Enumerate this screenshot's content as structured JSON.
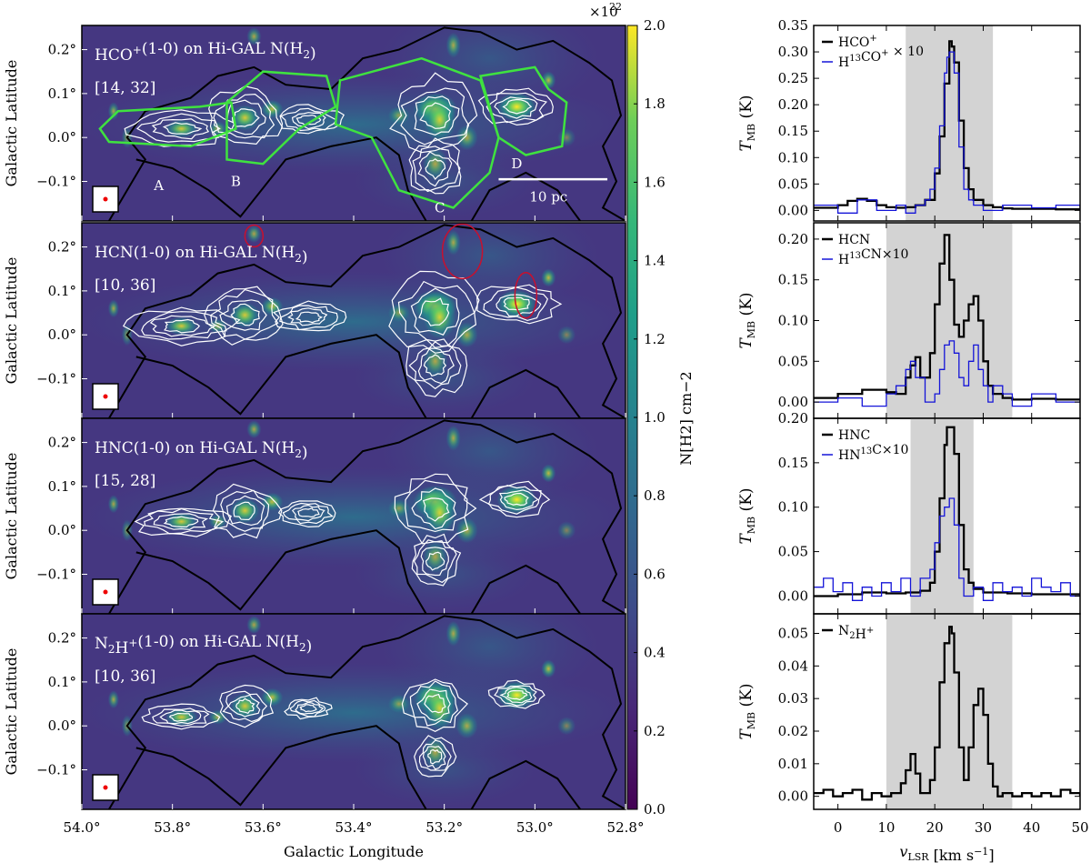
{
  "left": {
    "panels": [
      {
        "title_main": "HCO",
        "title_sup": "+",
        "title_rest": "(1-0) on Hi-GAL N(H",
        "title_sub": "2",
        "title_end": ")",
        "range": "[14, 32]",
        "show_regions": true
      },
      {
        "title_main": "HCN(1-0) on Hi-GAL N(H",
        "title_sup": "",
        "title_rest": "",
        "title_sub": "2",
        "title_end": ")",
        "range": "[10, 36]",
        "show_red": true
      },
      {
        "title_main": "HNC(1-0) on Hi-GAL N(H",
        "title_sup": "",
        "title_rest": "",
        "title_sub": "2",
        "title_end": ")",
        "range": "[15, 28]"
      },
      {
        "title_main": "N",
        "title_sup": "",
        "title_rest": "H",
        "title_sub": "2",
        "title_end": "+(1-0) on Hi-GAL N(H2)",
        "range": "[10, 36]"
      }
    ],
    "ylabel": "Galactic Latitude",
    "xlabel": "Galactic Longitude",
    "yticks": [
      "0.2°",
      "0.1°",
      "0.0°",
      "−0.1°"
    ],
    "xticks": [
      "54.0°",
      "53.8°",
      "53.6°",
      "53.4°",
      "53.2°",
      "53.0°",
      "52.8°"
    ],
    "region_labels": [
      "A",
      "B",
      "C",
      "D"
    ],
    "scalebar_label": "10 pc",
    "colorbar": {
      "label": "N[H2] cm−2",
      "exponent": "×10",
      "exponent_power": "22",
      "ticks": [
        "2.0",
        "1.8",
        "1.6",
        "1.4",
        "1.2",
        "1.0",
        "0.8",
        "0.6",
        "0.4",
        "0.2",
        "0.0"
      ],
      "range": [
        0.0,
        2.0
      ]
    }
  },
  "chart_data": [
    {
      "type": "line",
      "ylabel": "T_MB (K)",
      "xlim": [
        -5,
        50
      ],
      "ylim": [
        -0.02,
        0.35
      ],
      "yticks": [
        0.0,
        0.05,
        0.1,
        0.15,
        0.2,
        0.25,
        0.3,
        0.35
      ],
      "shade": [
        14,
        32
      ],
      "series": [
        {
          "name": "HCO+",
          "color": "#000000",
          "x": [
            -5,
            0,
            2,
            4,
            6,
            8,
            10,
            12,
            14,
            16,
            18,
            20,
            21,
            22,
            23,
            23.5,
            24,
            25,
            26,
            27,
            28,
            30,
            32,
            34,
            36,
            40,
            45,
            50
          ],
          "y": [
            0.005,
            0.01,
            0.018,
            0.022,
            0.018,
            0.01,
            0.006,
            0.005,
            0.006,
            0.01,
            0.02,
            0.07,
            0.14,
            0.24,
            0.32,
            0.31,
            0.28,
            0.17,
            0.08,
            0.04,
            0.02,
            0.01,
            0.006,
            0.004,
            0.003,
            0.003,
            0.002,
            0.002
          ]
        },
        {
          "name": "H13CO+ × 10",
          "color": "#1414d8",
          "x": [
            -5,
            0,
            4,
            8,
            12,
            14,
            16,
            18,
            19,
            20,
            21,
            22,
            22.5,
            23,
            24,
            25,
            26,
            27,
            28,
            30,
            34,
            40,
            45,
            50
          ],
          "y": [
            0.01,
            -0.005,
            0.02,
            0.0,
            0.01,
            -0.005,
            0.01,
            0.02,
            0.04,
            0.08,
            0.16,
            0.26,
            0.29,
            0.3,
            0.26,
            0.12,
            0.04,
            0.02,
            0.01,
            0.0,
            0.01,
            0.005,
            0.01,
            0.0
          ]
        }
      ]
    },
    {
      "type": "line",
      "ylabel": "T_MB (K)",
      "xlim": [
        -5,
        50
      ],
      "ylim": [
        -0.02,
        0.22
      ],
      "yticks": [
        0.0,
        0.05,
        0.1,
        0.15,
        0.2
      ],
      "shade": [
        10,
        36
      ],
      "series": [
        {
          "name": "HCN",
          "color": "#000000",
          "x": [
            -5,
            0,
            5,
            10,
            12,
            14,
            15,
            16,
            17,
            18,
            19,
            20,
            21,
            22,
            23,
            24,
            25,
            26,
            27,
            28,
            29,
            30,
            31,
            32,
            34,
            36,
            40,
            45,
            50
          ],
          "y": [
            0.005,
            0.01,
            0.015,
            0.012,
            0.01,
            0.03,
            0.045,
            0.055,
            0.03,
            0.03,
            0.06,
            0.12,
            0.17,
            0.205,
            0.15,
            0.095,
            0.08,
            0.1,
            0.12,
            0.13,
            0.1,
            0.05,
            0.02,
            0.01,
            0.005,
            0.003,
            0.004,
            0.003,
            0.003
          ]
        },
        {
          "name": "H13CN × 10",
          "color": "#1414d8",
          "x": [
            -5,
            0,
            5,
            10,
            12,
            14,
            15,
            16,
            18,
            20,
            21,
            22,
            23,
            24,
            25,
            26,
            27,
            28,
            29,
            30,
            31,
            32,
            34,
            36,
            40,
            45,
            50
          ],
          "y": [
            0.0,
            0.005,
            -0.005,
            0.01,
            0.02,
            0.04,
            0.05,
            0.03,
            0.0,
            0.01,
            0.04,
            0.07,
            0.075,
            0.06,
            0.03,
            0.02,
            0.05,
            0.07,
            0.04,
            0.02,
            0.0,
            0.02,
            0.01,
            -0.005,
            0.01,
            0.0,
            0.005
          ]
        }
      ]
    },
    {
      "type": "line",
      "ylabel": "T_MB (K)",
      "xlim": [
        -5,
        50
      ],
      "ylim": [
        -0.02,
        0.2
      ],
      "yticks": [
        0.0,
        0.05,
        0.1,
        0.15,
        0.2
      ],
      "shade": [
        15,
        28
      ],
      "series": [
        {
          "name": "HNC",
          "color": "#000000",
          "x": [
            -5,
            0,
            5,
            10,
            14,
            17,
            19,
            20,
            21,
            22,
            22.5,
            23,
            24,
            25,
            26,
            27,
            28,
            30,
            35,
            40,
            45,
            50
          ],
          "y": [
            0.0,
            0.002,
            0.004,
            0.003,
            0.004,
            0.006,
            0.015,
            0.05,
            0.11,
            0.17,
            0.19,
            0.19,
            0.16,
            0.08,
            0.03,
            0.015,
            0.008,
            0.004,
            0.003,
            0.002,
            0.002,
            0.0
          ]
        },
        {
          "name": "HN13C × 10",
          "color": "#1414d8",
          "x": [
            -5,
            -3,
            -1,
            1,
            3,
            5,
            7,
            9,
            11,
            13,
            15,
            17,
            19,
            20,
            21,
            22,
            23,
            24,
            25,
            26,
            28,
            30,
            32,
            34,
            36,
            38,
            40,
            42,
            44,
            46,
            48,
            50
          ],
          "y": [
            0.01,
            0.02,
            0.005,
            0.015,
            -0.005,
            0.01,
            0.0,
            0.015,
            0.005,
            0.02,
            0.0,
            0.02,
            0.03,
            0.06,
            0.09,
            0.1,
            0.11,
            0.08,
            0.02,
            0.0,
            0.01,
            -0.005,
            0.015,
            0.005,
            0.01,
            0.0,
            0.02,
            0.01,
            0.005,
            0.015,
            0.0,
            0.005
          ]
        }
      ]
    },
    {
      "type": "line",
      "ylabel": "T_MB (K)",
      "xlabel": "v_LSR [km s−1]",
      "xlim": [
        -5,
        50
      ],
      "ylim": [
        -0.004,
        0.056
      ],
      "yticks": [
        0.0,
        0.01,
        0.02,
        0.03,
        0.04,
        0.05
      ],
      "xticks": [
        0,
        10,
        20,
        30,
        40,
        50
      ],
      "shade": [
        10,
        36
      ],
      "series": [
        {
          "name": "N2H+",
          "color": "#000000",
          "x": [
            -5,
            -3,
            -1,
            1,
            3,
            5,
            7,
            9,
            11,
            13,
            14,
            15,
            16,
            17,
            18,
            19,
            20,
            21,
            22,
            23,
            23.5,
            24,
            25,
            26,
            27,
            28,
            29,
            30,
            31,
            32,
            33,
            34,
            36,
            38,
            40,
            42,
            44,
            46,
            48,
            50
          ],
          "y": [
            0.001,
            0.002,
            0.0,
            0.001,
            0.002,
            -0.001,
            0.001,
            0.0,
            0.001,
            0.004,
            0.008,
            0.013,
            0.007,
            0.001,
            0.001,
            0.005,
            0.015,
            0.035,
            0.047,
            0.052,
            0.05,
            0.038,
            0.015,
            0.005,
            0.015,
            0.028,
            0.033,
            0.025,
            0.01,
            0.003,
            0.0,
            0.001,
            0.0,
            0.001,
            0.0,
            0.001,
            0.0,
            0.002,
            0.001,
            0.0
          ]
        }
      ]
    }
  ]
}
